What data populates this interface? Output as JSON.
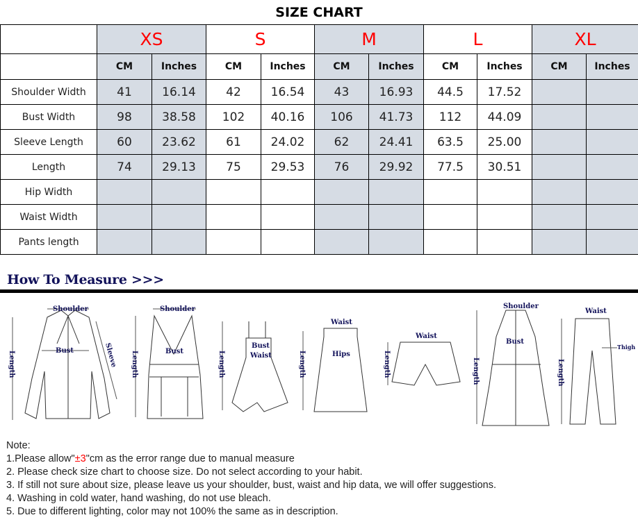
{
  "title": "SIZE CHART",
  "sizes": [
    "XS",
    "S",
    "M",
    "L",
    "XL"
  ],
  "units": [
    "CM",
    "Inches"
  ],
  "shaded_sizes": [
    "XS",
    "M",
    "XL"
  ],
  "colors": {
    "size_label": "#ff0000",
    "shade": "#d6dce4",
    "heading": "#12125a"
  },
  "rows": [
    {
      "label": "Shoulder Width",
      "values": [
        "41",
        "16.14",
        "42",
        "16.54",
        "43",
        "16.93",
        "44.5",
        "17.52",
        "",
        ""
      ]
    },
    {
      "label": "Bust Width",
      "values": [
        "98",
        "38.58",
        "102",
        "40.16",
        "106",
        "41.73",
        "112",
        "44.09",
        "",
        ""
      ]
    },
    {
      "label": "Sleeve Length",
      "values": [
        "60",
        "23.62",
        "61",
        "24.02",
        "62",
        "24.41",
        "63.5",
        "25.00",
        "",
        ""
      ]
    },
    {
      "label": "Length",
      "values": [
        "74",
        "29.13",
        "75",
        "29.53",
        "76",
        "29.92",
        "77.5",
        "30.51",
        "",
        ""
      ]
    },
    {
      "label": "Hip Width",
      "values": [
        "",
        "",
        "",
        "",
        "",
        "",
        "",
        "",
        "",
        ""
      ]
    },
    {
      "label": "Waist Width",
      "values": [
        "",
        "",
        "",
        "",
        "",
        "",
        "",
        "",
        "",
        ""
      ]
    },
    {
      "label": "Pants length",
      "values": [
        "",
        "",
        "",
        "",
        "",
        "",
        "",
        "",
        "",
        ""
      ]
    }
  ],
  "how_to_measure": {
    "heading": "How To Measure >>>",
    "labels": {
      "shoulder": "Shoulder",
      "bust": "Bust",
      "sleeve": "Sleeve",
      "length": "Length",
      "waist": "Waist",
      "hips": "Hips",
      "thigh": "Thigh"
    }
  },
  "notes": {
    "title": "Note:",
    "n1_pre": "1.Please allow\"",
    "n1_red": "±3",
    "n1_post": "\"cm as the error range due to manual measure",
    "n2": "2. Please check size chart to choose size. Do not select according to your habit.",
    "n3": "3. If still not sure about size, please leave us your shoulder, bust, waist and hip data, we will offer suggestions.",
    "n4": "4. Washing in cold water, hand washing, do not use bleach.",
    "n5": "5. Due to different lighting, color may not 100% the same as in description."
  }
}
